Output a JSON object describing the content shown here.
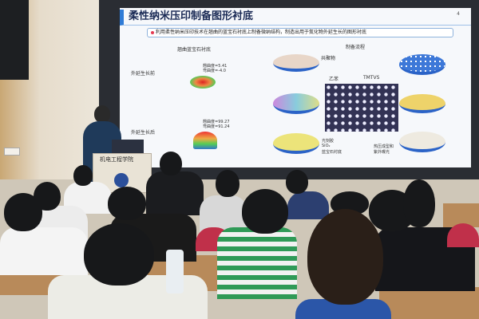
{
  "slide": {
    "title": "柔性纳米压印制备图形衬底",
    "page_number": "4",
    "bullet": "利用柔性纳米压印技术在翘曲的蓝宝石衬底上制备微纳结构，制造出用于氮化物外延生长的图形衬底",
    "left_heading": "翘曲蓝宝石衬底",
    "before_label": "外延生长前",
    "before_metrics": [
      "翘曲度=5.41",
      "弯曲度=-4.0"
    ],
    "after_label": "外延生长后",
    "after_metrics": [
      "翘曲度=99.27",
      "弯曲度=91.24"
    ],
    "right_heading": "制备流程",
    "labels": {
      "copolymer": "共聚物",
      "ethylbenzene": "乙苯",
      "tmtvs": "TMTVS",
      "photoresist": "光刻胶",
      "sio2": "SiO₂",
      "sapphire": "蓝宝石衬底",
      "hot_press": "热压成型和",
      "uv": "紫外曝光"
    }
  },
  "podium": {
    "text": "机电工程学院"
  },
  "colors": {
    "slide_accent": "#2f7bd6",
    "disc_blue": "#2b63c7",
    "podium": "#e9e3d6"
  }
}
